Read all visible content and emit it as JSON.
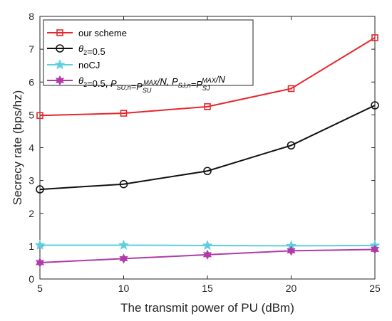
{
  "chart_data": {
    "type": "line",
    "x": [
      5,
      10,
      15,
      20,
      25
    ],
    "xlabel": "The transmit power of PU (dBm)",
    "ylabel": "Secrecy rate (bps/hz)",
    "xlim": [
      5,
      25
    ],
    "ylim": [
      0,
      8
    ],
    "xticks": [
      5,
      10,
      15,
      20,
      25
    ],
    "yticks": [
      0,
      1,
      2,
      3,
      4,
      5,
      6,
      7,
      8
    ],
    "grid": false,
    "legend_position": "top-left",
    "series": [
      {
        "name": "our scheme",
        "color": "#e8262b",
        "marker": "square",
        "values": [
          4.98,
          5.05,
          5.25,
          5.8,
          7.35
        ]
      },
      {
        "name": "θ2=0.5",
        "legend_parts": [
          {
            "t": "θ",
            "style": "italic"
          },
          {
            "t": "2",
            "style": "sub"
          },
          {
            "t": "=0.5"
          }
        ],
        "color": "#111111",
        "marker": "circle",
        "values": [
          2.73,
          2.89,
          3.29,
          4.07,
          5.29
        ]
      },
      {
        "name": "noCJ",
        "color": "#5fcfe0",
        "marker": "star",
        "values": [
          1.03,
          1.03,
          1.02,
          1.01,
          1.02
        ]
      },
      {
        "name": "θ2=0.5,  PSU,n=PSU^MAX/N,  PSJ,n=PSJ^MAX/N",
        "legend_parts": [
          {
            "t": "θ",
            "style": "italic"
          },
          {
            "t": "2",
            "style": "sub"
          },
          {
            "t": "=0.5,  "
          },
          {
            "t": "P",
            "style": "italic"
          },
          {
            "t": "SU,n",
            "style": "sub italic"
          },
          {
            "t": "=",
            "style": "italic"
          },
          {
            "t": "P",
            "style": "italic"
          },
          {
            "t": "SU",
            "style": "subsup-sub italic",
            "sup": "MAX"
          },
          {
            "t": "/N,  ",
            "style": "italic"
          },
          {
            "t": "P",
            "style": "italic"
          },
          {
            "t": "SJ,n",
            "style": "sub italic"
          },
          {
            "t": "=",
            "style": "italic"
          },
          {
            "t": "P",
            "style": "italic"
          },
          {
            "t": "SJ",
            "style": "subsup-sub italic",
            "sup": "MAX"
          },
          {
            "t": "/N",
            "style": "italic"
          }
        ],
        "color": "#b03aa8",
        "marker": "hexagram",
        "values": [
          0.5,
          0.62,
          0.74,
          0.86,
          0.9
        ]
      }
    ]
  }
}
